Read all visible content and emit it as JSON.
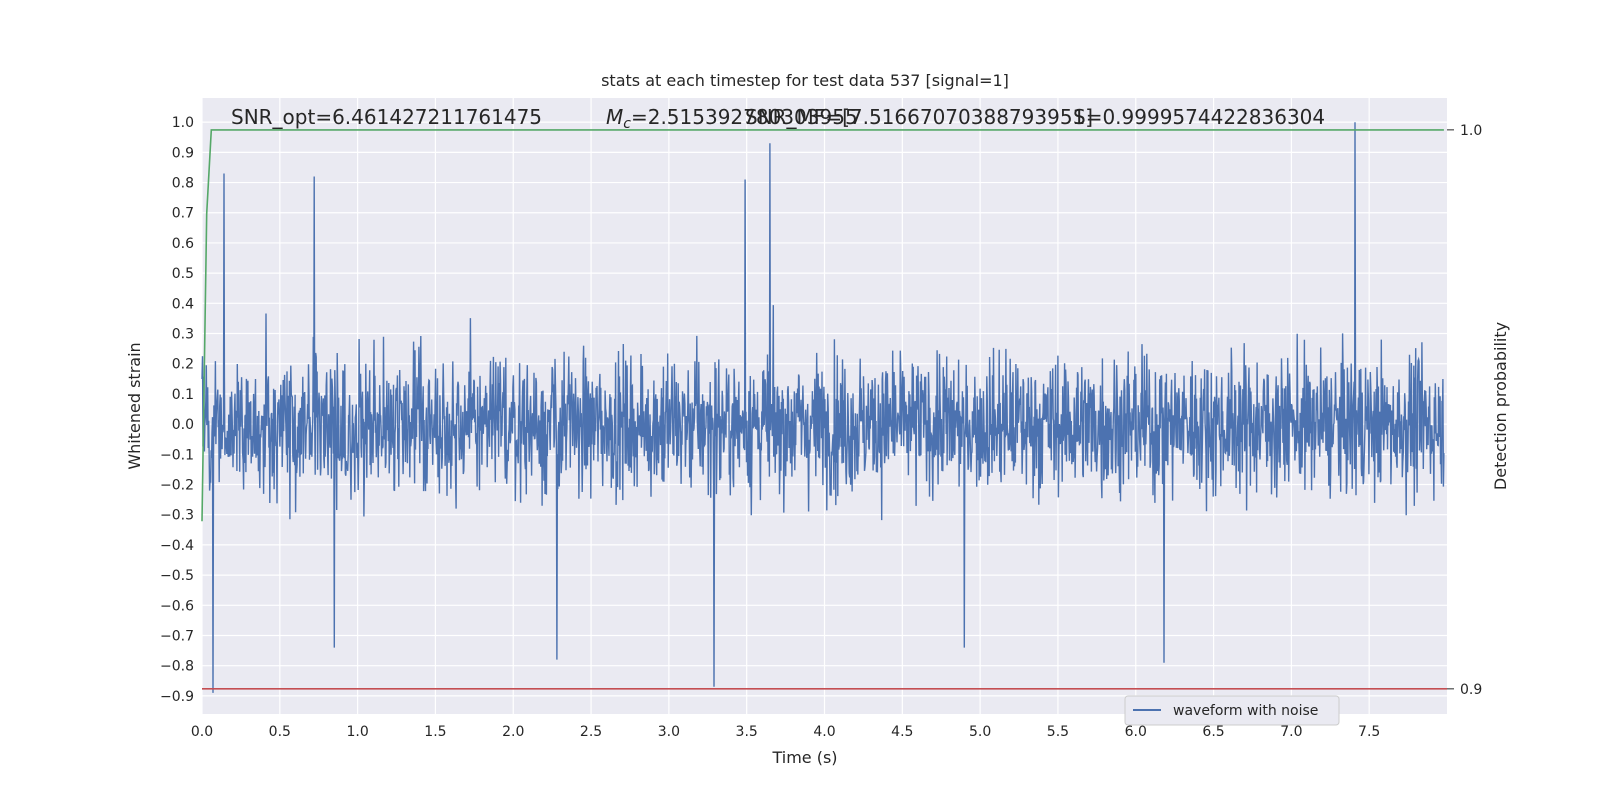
{
  "chart_data": {
    "type": "line",
    "title": "stats at each timestep for test data 537 [signal=1]",
    "xlabel": "Time (s)",
    "ylabel": "Whitened strain",
    "y2label": "Detection probability",
    "xlim": [
      0,
      8.0
    ],
    "ylim": [
      -0.96,
      1.08
    ],
    "y2lim": [
      0.8955,
      1.0057
    ],
    "x_ticks": [
      "0.0",
      "0.5",
      "1.0",
      "1.5",
      "2.0",
      "2.5",
      "3.0",
      "3.5",
      "4.0",
      "4.5",
      "5.0",
      "5.5",
      "6.0",
      "6.5",
      "7.0",
      "7.5"
    ],
    "y_ticks": [
      "1.0",
      "0.9",
      "0.8",
      "0.7",
      "0.6",
      "0.5",
      "0.4",
      "0.3",
      "0.2",
      "0.1",
      "0.0",
      "−0.1",
      "−0.2",
      "−0.3",
      "−0.4",
      "−0.5",
      "−0.6",
      "−0.7",
      "−0.8",
      "−0.9"
    ],
    "y2_ticks": [
      "1.0",
      "0.9"
    ],
    "grid": true,
    "legend_position": "lower-right",
    "annotations": {
      "snr_opt": "SNR_opt=6.461427211761475",
      "mc_label": "=2.515392780303955",
      "snr_mf": "SNR_MF=[7.51667070388793951]",
      "s_val": "S=0.9999574422836304"
    },
    "series": [
      {
        "name": "waveform with noise",
        "color": "#4c72b0",
        "description_values": {
          "typical_range": [
            -0.45,
            0.45
          ],
          "max": 1.0,
          "min": -0.9,
          "duration_s": 8.0
        },
        "peaks": [
          [
            0.14,
            0.83
          ],
          [
            0.72,
            0.82
          ],
          [
            3.65,
            0.93
          ],
          [
            3.49,
            0.81
          ],
          [
            7.41,
            1.0
          ],
          [
            0.07,
            -0.89
          ],
          [
            3.29,
            -0.87
          ],
          [
            2.28,
            -0.78
          ],
          [
            6.18,
            -0.79
          ],
          [
            0.85,
            -0.74
          ],
          [
            4.9,
            -0.74
          ]
        ]
      },
      {
        "color": "#55a868",
        "axis": "secondary",
        "values": [
          [
            0.0,
            0.93
          ],
          [
            0.03,
            0.985
          ],
          [
            0.06,
            1.0
          ],
          [
            7.98,
            1.0
          ]
        ]
      },
      {
        "color": "#c44e52",
        "axis": "secondary",
        "values": [
          [
            0.0,
            0.9
          ],
          [
            8.0,
            0.9
          ]
        ]
      }
    ],
    "colors": {
      "plot_bg": "#eaeaf2",
      "grid": "#ffffff",
      "text": "#262626"
    }
  }
}
